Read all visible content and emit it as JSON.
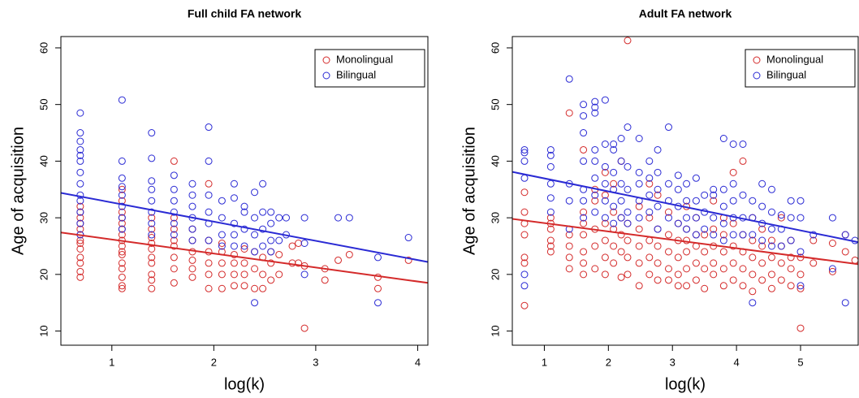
{
  "chart_data": [
    {
      "type": "scatter",
      "title": "Full child FA network",
      "xlabel": "log(k)",
      "ylabel": "Age of acquisition",
      "xlim": [
        0.5,
        4.1
      ],
      "ylim": [
        7.5,
        62
      ],
      "xticks": [
        1,
        2,
        3,
        4
      ],
      "yticks": [
        10,
        20,
        30,
        40,
        50,
        60
      ],
      "legend": "top-right",
      "series": [
        {
          "name": "Monolingual",
          "color": "#d42a2a",
          "x": [
            0.69,
            0.69,
            0.69,
            0.69,
            0.69,
            0.69,
            0.69,
            0.69,
            0.69,
            0.69,
            0.69,
            0.69,
            0.69,
            1.1,
            1.1,
            1.1,
            1.1,
            1.1,
            1.1,
            1.1,
            1.1,
            1.1,
            1.1,
            1.1,
            1.1,
            1.1,
            1.1,
            1.1,
            1.1,
            1.39,
            1.39,
            1.39,
            1.39,
            1.39,
            1.39,
            1.39,
            1.39,
            1.39,
            1.39,
            1.61,
            1.61,
            1.61,
            1.61,
            1.61,
            1.61,
            1.61,
            1.61,
            1.79,
            1.79,
            1.79,
            1.79,
            1.79,
            1.79,
            1.95,
            1.95,
            1.95,
            1.95,
            1.95,
            1.95,
            2.08,
            2.08,
            2.08,
            2.08,
            2.08,
            2.2,
            2.2,
            2.2,
            2.2,
            2.3,
            2.3,
            2.3,
            2.3,
            2.4,
            2.4,
            2.4,
            2.48,
            2.48,
            2.48,
            2.56,
            2.56,
            2.56,
            2.64,
            2.64,
            2.77,
            2.77,
            2.83,
            2.83,
            2.89,
            2.89,
            3.09,
            3.09,
            3.22,
            3.33,
            3.61,
            3.61,
            3.91
          ],
          "values": [
            19.5,
            20.5,
            22,
            23,
            24.5,
            25.5,
            26,
            27,
            28,
            29,
            30,
            31,
            32,
            17.5,
            18,
            19.5,
            21,
            22,
            23.5,
            24,
            25,
            26,
            27,
            28,
            29,
            30,
            31,
            33,
            35,
            17.5,
            19,
            20,
            22,
            23,
            24.5,
            25.5,
            26.5,
            28,
            30,
            18.5,
            21,
            23,
            25,
            26,
            28,
            30,
            40,
            19.5,
            21,
            22.5,
            24,
            26,
            28,
            17.5,
            20,
            22,
            24,
            26,
            36,
            17.5,
            20,
            22,
            24,
            25.5,
            18,
            20,
            22,
            23.5,
            18,
            20,
            22,
            24.5,
            17.5,
            21,
            24,
            17.5,
            20,
            23,
            19,
            22,
            24,
            20,
            23.5,
            22,
            25,
            22,
            25.5,
            10.5,
            21.5,
            19,
            21,
            22.5,
            23.5,
            17.5,
            19.5,
            22.5
          ],
          "fit": {
            "x": [
              0.5,
              4.1
            ],
            "values": [
              27.4,
              18.5
            ]
          }
        },
        {
          "name": "Bilingual",
          "color": "#2a2ad4",
          "x": [
            0.69,
            0.69,
            0.69,
            0.69,
            0.69,
            0.69,
            0.69,
            0.69,
            0.69,
            0.69,
            0.69,
            0.69,
            0.69,
            1.1,
            1.1,
            1.1,
            1.1,
            1.1,
            1.1,
            1.1,
            1.1,
            1.39,
            1.39,
            1.39,
            1.39,
            1.39,
            1.39,
            1.39,
            1.39,
            1.61,
            1.61,
            1.61,
            1.61,
            1.61,
            1.61,
            1.79,
            1.79,
            1.79,
            1.79,
            1.79,
            1.79,
            1.95,
            1.95,
            1.95,
            1.95,
            1.95,
            1.95,
            2.08,
            2.08,
            2.08,
            2.08,
            2.2,
            2.2,
            2.2,
            2.2,
            2.2,
            2.3,
            2.3,
            2.3,
            2.3,
            2.4,
            2.4,
            2.4,
            2.4,
            2.4,
            2.48,
            2.48,
            2.48,
            2.48,
            2.56,
            2.56,
            2.56,
            2.56,
            2.64,
            2.64,
            2.71,
            2.71,
            2.89,
            2.89,
            2.89,
            3.22,
            3.33,
            3.61,
            3.61,
            3.91
          ],
          "values": [
            27,
            29,
            31,
            33,
            34,
            36,
            38,
            40,
            41,
            42,
            43.5,
            45,
            48.5,
            28,
            30,
            32,
            34,
            35.5,
            37,
            40,
            50.8,
            27,
            29,
            31,
            33,
            35,
            36.5,
            40.5,
            45,
            27,
            29,
            31,
            33,
            35,
            37.5,
            26,
            28,
            30,
            32,
            34,
            36,
            26,
            29,
            31,
            34,
            40,
            46,
            25,
            27,
            30,
            33,
            25,
            27,
            29,
            33.5,
            36,
            25,
            28,
            31,
            32,
            15,
            24,
            27,
            30,
            34.5,
            25,
            28,
            31,
            36,
            24,
            26,
            29,
            31,
            26,
            30,
            27,
            30,
            20,
            25.5,
            30,
            30,
            30,
            15,
            23,
            26.5
          ],
          "fit": {
            "x": [
              0.5,
              4.1
            ],
            "values": [
              34.4,
              22.2
            ]
          }
        }
      ]
    },
    {
      "type": "scatter",
      "title": "Adult FA network",
      "xlabel": "log(k)",
      "ylabel": "Age of acquisition",
      "xlim": [
        0.5,
        5.9
      ],
      "ylim": [
        7.5,
        62
      ],
      "xticks": [
        1,
        2,
        3,
        4,
        5
      ],
      "yticks": [
        10,
        20,
        30,
        40,
        50,
        60
      ],
      "legend": "top-right",
      "series": [
        {
          "name": "Monolingual",
          "color": "#d42a2a",
          "x": [
            0.69,
            0.69,
            0.69,
            0.69,
            0.69,
            0.69,
            0.69,
            1.1,
            1.1,
            1.1,
            1.1,
            1.1,
            1.1,
            1.39,
            1.39,
            1.39,
            1.39,
            1.39,
            1.61,
            1.61,
            1.61,
            1.61,
            1.61,
            1.61,
            1.61,
            1.79,
            1.79,
            1.79,
            1.79,
            1.79,
            1.95,
            1.95,
            1.95,
            1.95,
            1.95,
            1.95,
            2.08,
            2.08,
            2.08,
            2.08,
            2.08,
            2.2,
            2.2,
            2.2,
            2.2,
            2.2,
            2.3,
            2.3,
            2.3,
            2.3,
            2.3,
            2.48,
            2.48,
            2.48,
            2.48,
            2.48,
            2.64,
            2.64,
            2.64,
            2.64,
            2.64,
            2.77,
            2.77,
            2.77,
            2.77,
            2.77,
            2.94,
            2.94,
            2.94,
            2.94,
            2.94,
            3.09,
            3.09,
            3.09,
            3.09,
            3.09,
            3.22,
            3.22,
            3.22,
            3.22,
            3.22,
            3.22,
            3.37,
            3.37,
            3.37,
            3.37,
            3.37,
            3.5,
            3.5,
            3.5,
            3.5,
            3.64,
            3.64,
            3.64,
            3.64,
            3.64,
            3.8,
            3.8,
            3.8,
            3.8,
            3.8,
            3.95,
            3.95,
            3.95,
            3.95,
            3.95,
            4.1,
            4.1,
            4.1,
            4.1,
            4.1,
            4.25,
            4.25,
            4.25,
            4.25,
            4.25,
            4.4,
            4.4,
            4.4,
            4.4,
            4.55,
            4.55,
            4.55,
            4.55,
            4.7,
            4.7,
            4.7,
            4.7,
            4.85,
            4.85,
            4.85,
            4.85,
            5.0,
            5.0,
            5.0,
            5.0,
            5.2,
            5.2,
            5.5,
            5.5,
            5.7,
            5.7,
            5.85
          ],
          "values": [
            14.5,
            22,
            23,
            27,
            29,
            31,
            34.5,
            24,
            25,
            26,
            28,
            29,
            30,
            21,
            23,
            25,
            27,
            48.5,
            20,
            22,
            24,
            27,
            29,
            31,
            42,
            21,
            25,
            28,
            33,
            35,
            20,
            23,
            26,
            29,
            34,
            38,
            22,
            25,
            28,
            31,
            36,
            19.5,
            24,
            27,
            30,
            40,
            20,
            23,
            26,
            29,
            61.3,
            18,
            22,
            25,
            28,
            32,
            20,
            23,
            26,
            30,
            36,
            19,
            22,
            25,
            28,
            34,
            19,
            21,
            24,
            27,
            31,
            18,
            20,
            23,
            26,
            29,
            18,
            21,
            24,
            26,
            28,
            32,
            19,
            22,
            25,
            27,
            30,
            17.5,
            21,
            24,
            27,
            20,
            22,
            25,
            28,
            33,
            18,
            21,
            24,
            27,
            30,
            19,
            22,
            25,
            29,
            38,
            18,
            21,
            24,
            27,
            40,
            17,
            20,
            23,
            26,
            30,
            19,
            22,
            25,
            28,
            17.5,
            20,
            23,
            26,
            19,
            22,
            25,
            30,
            18,
            21,
            23,
            26,
            10.5,
            17.5,
            20,
            23,
            22,
            26,
            20.5,
            25.5,
            24,
            27,
            22.5
          ],
          "fit": {
            "x": [
              0.5,
              5.9
            ],
            "values": [
              29.8,
              21.8
            ]
          }
        },
        {
          "name": "Bilingual",
          "color": "#2a2ad4",
          "x": [
            0.69,
            0.69,
            0.69,
            0.69,
            0.69,
            0.69,
            1.1,
            1.1,
            1.1,
            1.1,
            1.1,
            1.1,
            1.39,
            1.39,
            1.39,
            1.39,
            1.61,
            1.61,
            1.61,
            1.61,
            1.61,
            1.61,
            1.61,
            1.79,
            1.79,
            1.79,
            1.79,
            1.79,
            1.79,
            1.79,
            1.79,
            1.95,
            1.95,
            1.95,
            1.95,
            1.95,
            1.95,
            2.08,
            2.08,
            2.08,
            2.08,
            2.08,
            2.08,
            2.2,
            2.2,
            2.2,
            2.2,
            2.2,
            2.3,
            2.3,
            2.3,
            2.3,
            2.3,
            2.48,
            2.48,
            2.48,
            2.48,
            2.48,
            2.64,
            2.64,
            2.64,
            2.64,
            2.77,
            2.77,
            2.77,
            2.77,
            2.77,
            2.94,
            2.94,
            2.94,
            2.94,
            3.09,
            3.09,
            3.09,
            3.09,
            3.22,
            3.22,
            3.22,
            3.22,
            3.37,
            3.37,
            3.37,
            3.37,
            3.5,
            3.5,
            3.5,
            3.64,
            3.64,
            3.64,
            3.64,
            3.8,
            3.8,
            3.8,
            3.8,
            3.8,
            3.95,
            3.95,
            3.95,
            3.95,
            3.95,
            4.1,
            4.1,
            4.1,
            4.1,
            4.25,
            4.25,
            4.25,
            4.25,
            4.4,
            4.4,
            4.4,
            4.4,
            4.55,
            4.55,
            4.55,
            4.55,
            4.7,
            4.7,
            4.7,
            4.85,
            4.85,
            4.85,
            5.0,
            5.0,
            5.0,
            5.0,
            5.2,
            5.5,
            5.5,
            5.7,
            5.7,
            5.85
          ],
          "values": [
            18,
            20,
            37,
            40,
            41.5,
            42,
            31,
            33.5,
            36,
            39,
            41,
            42,
            28,
            33,
            36,
            54.5,
            30,
            33,
            35,
            40,
            45,
            48,
            50,
            31,
            34,
            37,
            40,
            42,
            48.5,
            50.5,
            49.5,
            30,
            33,
            36,
            39,
            43,
            50.8,
            29,
            32,
            35,
            38,
            42,
            43,
            30,
            33,
            36,
            40,
            44,
            29,
            31,
            35,
            39,
            46,
            30,
            33,
            36,
            38,
            44,
            31,
            34,
            37,
            40,
            28,
            32,
            35,
            38,
            42,
            30,
            33,
            36,
            46,
            29,
            32,
            35,
            37.5,
            28,
            30,
            33,
            36,
            27,
            30,
            33,
            37,
            28,
            31,
            34,
            27,
            30,
            34,
            35,
            26,
            29,
            32,
            35,
            44,
            27,
            30,
            33,
            36,
            43,
            27,
            30,
            34,
            43,
            15,
            27,
            30,
            33,
            26,
            29,
            32,
            36,
            25,
            28,
            31,
            35,
            25,
            28,
            30.5,
            26,
            30,
            33,
            18,
            24,
            30,
            33,
            27,
            21,
            30,
            15,
            27,
            26
          ],
          "fit": {
            "x": [
              0.5,
              5.9
            ],
            "values": [
              38.1,
              25.7
            ]
          }
        }
      ]
    }
  ]
}
